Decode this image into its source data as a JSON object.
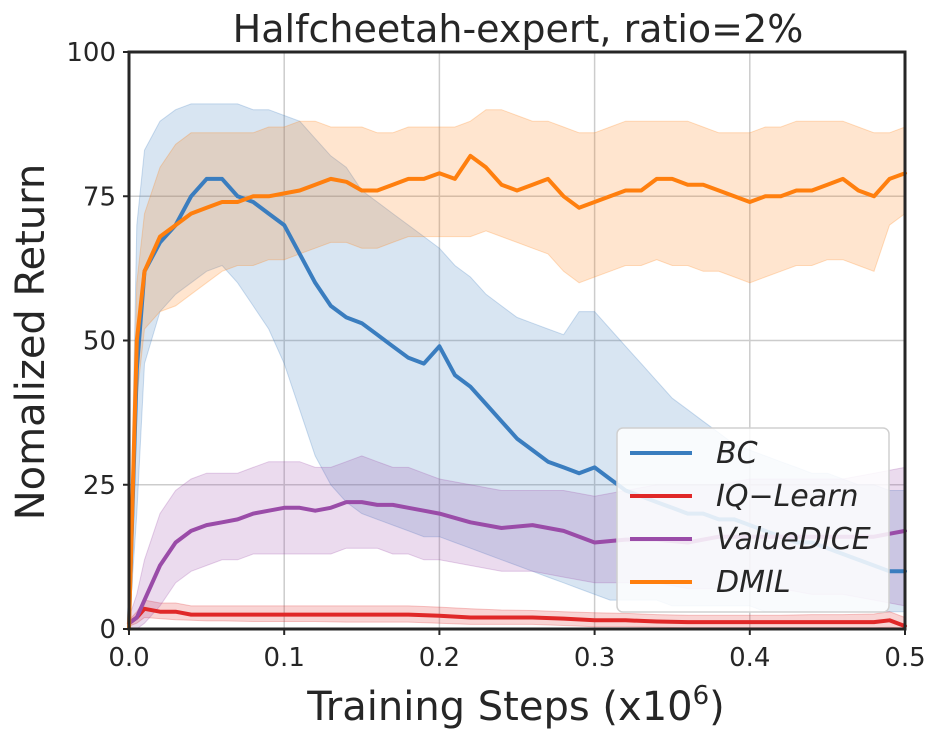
{
  "chart_data": {
    "type": "line",
    "title": "Halfcheetah-expert, ratio=2%",
    "xlabel_base": "Training Steps (x10",
    "xlabel_exp": "6",
    "xlabel_tail": ")",
    "ylabel": "Nomalized Return",
    "xlim": [
      0,
      0.5
    ],
    "ylim": [
      0,
      100
    ],
    "xticks": [
      0.0,
      0.1,
      0.2,
      0.3,
      0.4,
      0.5
    ],
    "xtick_labels": [
      "0.0",
      "0.1",
      "0.2",
      "0.3",
      "0.4",
      "0.5"
    ],
    "yticks": [
      0,
      25,
      50,
      75,
      100
    ],
    "ytick_labels": [
      "0",
      "25",
      "50",
      "75",
      "100"
    ],
    "grid": true,
    "legend_position": "lower-right",
    "series": [
      {
        "name": "BC",
        "legend_label": "BC",
        "color": "#3a7dbf",
        "x": [
          0,
          0.005,
          0.01,
          0.02,
          0.03,
          0.04,
          0.05,
          0.06,
          0.07,
          0.08,
          0.09,
          0.1,
          0.11,
          0.12,
          0.13,
          0.14,
          0.15,
          0.16,
          0.17,
          0.18,
          0.19,
          0.2,
          0.21,
          0.22,
          0.23,
          0.24,
          0.25,
          0.26,
          0.27,
          0.28,
          0.29,
          0.3,
          0.31,
          0.32,
          0.33,
          0.34,
          0.35,
          0.36,
          0.37,
          0.38,
          0.39,
          0.4,
          0.41,
          0.42,
          0.43,
          0.44,
          0.45,
          0.46,
          0.47,
          0.48,
          0.49,
          0.5
        ],
        "mean": [
          1,
          45,
          62,
          67,
          70,
          75,
          78,
          78,
          75,
          74,
          72,
          70,
          65,
          60,
          56,
          54,
          53,
          51,
          49,
          47,
          46,
          49,
          44,
          42,
          39,
          36,
          33,
          31,
          29,
          28,
          27,
          28,
          26,
          24,
          23,
          22,
          21,
          20,
          20,
          19,
          19,
          18,
          17,
          16,
          15,
          15,
          14,
          13,
          12,
          11,
          10,
          10
        ],
        "upper": [
          2,
          70,
          83,
          88,
          90,
          91,
          91,
          91,
          91,
          90,
          90,
          89,
          88,
          85,
          82,
          80,
          76,
          74,
          72,
          70,
          68,
          66,
          63,
          61,
          58,
          56,
          54,
          53,
          52,
          51,
          55,
          55,
          52,
          49,
          46,
          43,
          40,
          38,
          36,
          34,
          32,
          31,
          30,
          29,
          28,
          27,
          27,
          26,
          25,
          25,
          24,
          24
        ],
        "lower": [
          0,
          20,
          46,
          55,
          58,
          60,
          62,
          63,
          60,
          56,
          52,
          46,
          38,
          30,
          25,
          22,
          20,
          19,
          18,
          17,
          16,
          16,
          15,
          14,
          13,
          12,
          11,
          10,
          9,
          8,
          7,
          6,
          5,
          5,
          5,
          5,
          4,
          4,
          4,
          4,
          4,
          4,
          3,
          3,
          3,
          3,
          3,
          3,
          3,
          3,
          3,
          3
        ]
      },
      {
        "name": "IQ-Learn",
        "legend_label": "IQ−Learn",
        "color": "#e02828",
        "x": [
          0,
          0.005,
          0.01,
          0.02,
          0.03,
          0.04,
          0.05,
          0.06,
          0.08,
          0.1,
          0.12,
          0.14,
          0.16,
          0.18,
          0.2,
          0.22,
          0.24,
          0.26,
          0.28,
          0.3,
          0.32,
          0.34,
          0.36,
          0.38,
          0.4,
          0.42,
          0.44,
          0.46,
          0.48,
          0.49,
          0.5
        ],
        "mean": [
          1,
          2,
          3.5,
          3,
          3,
          2.5,
          2.5,
          2.5,
          2.5,
          2.5,
          2.5,
          2.5,
          2.5,
          2.5,
          2.3,
          2,
          2,
          2,
          1.8,
          1.5,
          1.5,
          1.3,
          1.2,
          1.2,
          1.2,
          1.2,
          1.2,
          1.2,
          1.2,
          1.5,
          0.5
        ],
        "upper": [
          1.5,
          3,
          5,
          4.5,
          4.5,
          4,
          4,
          4,
          4,
          4,
          4,
          4,
          4,
          4,
          3.8,
          3.5,
          3.3,
          3.2,
          3,
          2.8,
          2.7,
          2.5,
          2.4,
          2.4,
          2.4,
          2.4,
          2.5,
          2.5,
          2.6,
          3,
          2
        ],
        "lower": [
          0.5,
          1,
          2,
          1.8,
          1.6,
          1.5,
          1.4,
          1.4,
          1.3,
          1.3,
          1.3,
          1.2,
          1.2,
          1.2,
          1,
          0.8,
          0.8,
          0.8,
          0.6,
          0.4,
          0.4,
          0.3,
          0.2,
          0.2,
          0.2,
          0.2,
          0.2,
          0.2,
          0.2,
          0.3,
          0.1
        ]
      },
      {
        "name": "ValueDICE",
        "legend_label": "ValueDICE",
        "color": "#9a4ca8",
        "x": [
          0,
          0.005,
          0.01,
          0.02,
          0.03,
          0.04,
          0.05,
          0.06,
          0.07,
          0.08,
          0.09,
          0.1,
          0.11,
          0.12,
          0.13,
          0.14,
          0.15,
          0.16,
          0.17,
          0.18,
          0.19,
          0.2,
          0.22,
          0.24,
          0.26,
          0.28,
          0.3,
          0.32,
          0.34,
          0.36,
          0.38,
          0.4,
          0.42,
          0.44,
          0.46,
          0.48,
          0.5
        ],
        "mean": [
          1,
          2,
          5,
          11,
          15,
          17,
          18,
          18.5,
          19,
          20,
          20.5,
          21,
          21,
          20.5,
          21,
          22,
          22,
          21.5,
          21.5,
          21,
          20.5,
          20,
          18.5,
          17.5,
          18,
          17,
          15,
          15.5,
          15.5,
          15,
          16,
          16,
          16,
          16,
          16,
          16,
          17
        ],
        "upper": [
          2,
          6,
          12,
          20,
          24,
          26,
          27,
          27,
          27,
          28,
          29,
          29,
          29,
          28,
          28,
          29,
          30,
          29,
          28,
          28,
          27,
          26,
          25,
          24,
          24,
          24,
          23,
          24,
          25,
          25,
          25,
          26,
          26,
          26,
          26,
          27,
          28
        ],
        "lower": [
          0,
          0,
          1,
          4,
          8,
          10,
          11,
          12,
          12,
          13,
          13,
          13,
          13,
          13,
          13,
          14,
          14,
          14,
          13,
          13,
          12,
          12,
          11,
          10,
          10,
          9,
          8,
          8,
          8,
          7,
          7,
          7,
          7,
          6,
          6,
          5,
          4
        ]
      },
      {
        "name": "DMIL",
        "legend_label": "DMIL",
        "color": "#ff7f0e",
        "x": [
          0,
          0.005,
          0.01,
          0.02,
          0.03,
          0.04,
          0.05,
          0.06,
          0.07,
          0.08,
          0.09,
          0.1,
          0.11,
          0.12,
          0.13,
          0.14,
          0.15,
          0.16,
          0.17,
          0.18,
          0.19,
          0.2,
          0.21,
          0.22,
          0.23,
          0.24,
          0.25,
          0.26,
          0.27,
          0.28,
          0.29,
          0.3,
          0.31,
          0.32,
          0.33,
          0.34,
          0.35,
          0.36,
          0.37,
          0.38,
          0.39,
          0.4,
          0.41,
          0.42,
          0.43,
          0.44,
          0.45,
          0.46,
          0.47,
          0.48,
          0.49,
          0.5
        ],
        "mean": [
          0,
          50,
          62,
          68,
          70,
          72,
          73,
          74,
          74,
          75,
          75,
          75.5,
          76,
          77,
          78,
          77.5,
          76,
          76,
          77,
          78,
          78,
          79,
          78,
          82,
          80,
          77,
          76,
          77,
          78,
          75,
          73,
          74,
          75,
          76,
          76,
          78,
          78,
          77,
          77,
          76,
          75,
          74,
          75,
          75,
          76,
          76,
          77,
          78,
          76,
          75,
          78,
          79
        ],
        "upper": [
          0,
          60,
          72,
          80,
          84,
          86,
          86,
          86,
          86,
          86,
          87,
          87,
          88,
          88,
          87,
          87,
          87,
          86,
          86,
          87,
          87,
          87,
          87,
          88,
          90,
          90,
          89,
          88,
          88,
          87,
          86,
          86,
          87,
          88,
          88,
          88,
          88,
          88,
          87,
          86,
          86,
          86,
          87,
          87,
          88,
          88,
          88,
          88,
          87,
          86,
          86,
          87
        ],
        "lower": [
          0,
          40,
          52,
          55,
          56,
          58,
          60,
          62,
          63,
          63,
          64,
          64,
          65,
          66,
          67,
          67,
          66,
          66,
          67,
          68,
          68,
          68,
          68,
          68,
          69,
          68,
          67,
          66,
          65,
          62,
          60,
          61,
          62,
          63,
          63,
          64,
          63,
          63,
          62,
          62,
          61,
          60,
          61,
          62,
          63,
          63,
          64,
          64,
          63,
          62,
          70,
          72
        ]
      }
    ]
  }
}
